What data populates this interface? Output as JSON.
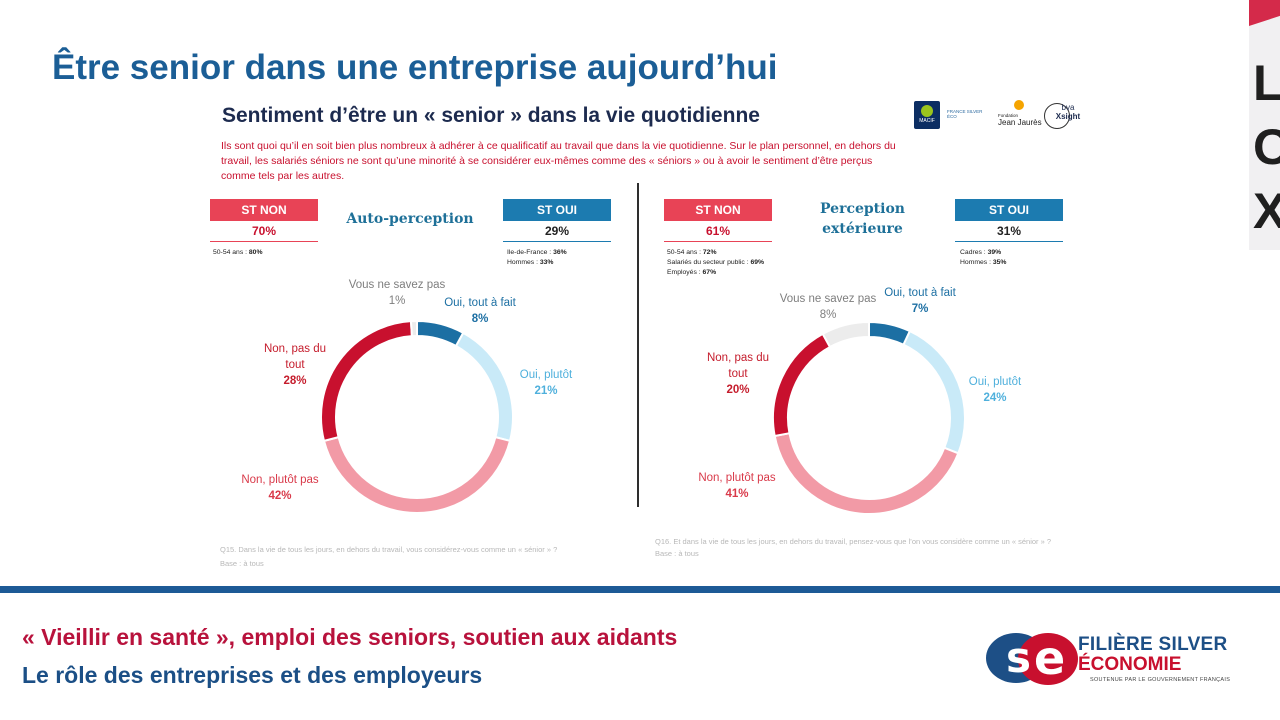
{
  "page_title": "Être senior dans une entreprise aujourd’hui",
  "slide": {
    "title": "Sentiment d’être un « senior » dans la vie quotidienne",
    "intro": "Ils sont quoi qu’il en soit bien plus nombreux à adhérer à ce qualificatif au travail que dans la vie quotidienne. Sur le plan personnel, en dehors du travail, les salariés séniors ne sont qu’une minorité à se considérer eux-mêmes comme des « séniors » ou à avoir le sentiment d’être perçus comme tels par les autres."
  },
  "logos": {
    "macif": "MACIF",
    "fse_small": "FRANCE SILVER ÉCO",
    "fondation": "Fondation",
    "jean_jaures": "Jean Jaurès",
    "bva": "bva",
    "xsight": "Xsight"
  },
  "side_decoration": {
    "letters": [
      "L",
      "O",
      "X"
    ]
  },
  "colors": {
    "oui_tout_a_fait": "#1c6fa3",
    "oui_plutot": "#c9eaf8",
    "non_plutot_pas": "#f29aa6",
    "non_pas_du_tout": "#c8102e",
    "ne_savez_pas": "#ececec",
    "st_non": "#e84356",
    "st_oui": "#1c7bb0",
    "title_blue": "#1b5e96",
    "footer_red": "#b8123c",
    "footer_blue": "#1b4f86"
  },
  "chart_data": [
    {
      "type": "pie",
      "variant": "donut",
      "title": "Auto-perception",
      "categories": [
        "Oui, tout à fait",
        "Oui, plutôt",
        "Non, plutôt pas",
        "Non, pas du tout",
        "Vous ne savez pas"
      ],
      "values": [
        8,
        21,
        42,
        28,
        1
      ],
      "labels": {
        "oui_tout_a_fait": {
          "name": "Oui, tout à fait",
          "value": "8%"
        },
        "oui_plutot": {
          "name": "Oui, plutôt",
          "value": "21%"
        },
        "non_plutot_pas": {
          "name": "Non, plutôt pas",
          "value": "42%"
        },
        "non_pas_du_tout": {
          "name": "Non, pas du tout",
          "value": "28%"
        },
        "ne_savez_pas": {
          "name": "Vous ne savez pas",
          "value": "1%"
        }
      },
      "st_non": {
        "label": "ST NON",
        "value": "70%",
        "notes": [
          {
            "text": "50-54 ans : ",
            "value": "80%"
          }
        ]
      },
      "st_oui": {
        "label": "ST OUI",
        "value": "29%",
        "notes": [
          {
            "text": "Ile-de-France : ",
            "value": "36%"
          },
          {
            "text": "Hommes : ",
            "value": "33%"
          }
        ]
      },
      "question": "Q15. Dans la vie de tous les jours, en dehors du travail, vous considérez-vous comme un « sénior » ?",
      "base": "Base : à tous"
    },
    {
      "type": "pie",
      "variant": "donut",
      "title": "Perception extérieure",
      "categories": [
        "Oui, tout à fait",
        "Oui, plutôt",
        "Non, plutôt pas",
        "Non, pas du tout",
        "Vous ne savez pas"
      ],
      "values": [
        7,
        24,
        41,
        20,
        8
      ],
      "labels": {
        "oui_tout_a_fait": {
          "name": "Oui, tout à fait",
          "value": "7%"
        },
        "oui_plutot": {
          "name": "Oui, plutôt",
          "value": "24%"
        },
        "non_plutot_pas": {
          "name": "Non, plutôt pas",
          "value": "41%"
        },
        "non_pas_du_tout": {
          "name": "Non, pas du tout",
          "value": "20%"
        },
        "ne_savez_pas": {
          "name": "Vous ne savez pas",
          "value": "8%"
        }
      },
      "st_non": {
        "label": "ST NON",
        "value": "61%",
        "notes": [
          {
            "text": "50-54 ans : ",
            "value": "72%"
          },
          {
            "text": "Salariés du secteur public : ",
            "value": "69%"
          },
          {
            "text": "Employés : ",
            "value": "67%"
          }
        ]
      },
      "st_oui": {
        "label": "ST OUI",
        "value": "31%",
        "notes": [
          {
            "text": "Cadres : ",
            "value": "39%"
          },
          {
            "text": "Hommes : ",
            "value": "35%"
          }
        ]
      },
      "question": "Q16. Et dans la vie de tous les jours, en dehors du travail, pensez-vous que l’on vous considère comme un « sénior » ?",
      "base": "Base : à tous"
    }
  ],
  "footer": {
    "line1": "« Vieillir en santé », emploi des seniors, soutien aux aidants",
    "line2": "Le rôle des entreprises et des employeurs",
    "logo_line1": "FILIÈRE SILVER",
    "logo_line2": "ÉCONOMIE",
    "logo_tagline": "SOUTENUE PAR LE GOUVERNEMENT FRANÇAIS"
  }
}
